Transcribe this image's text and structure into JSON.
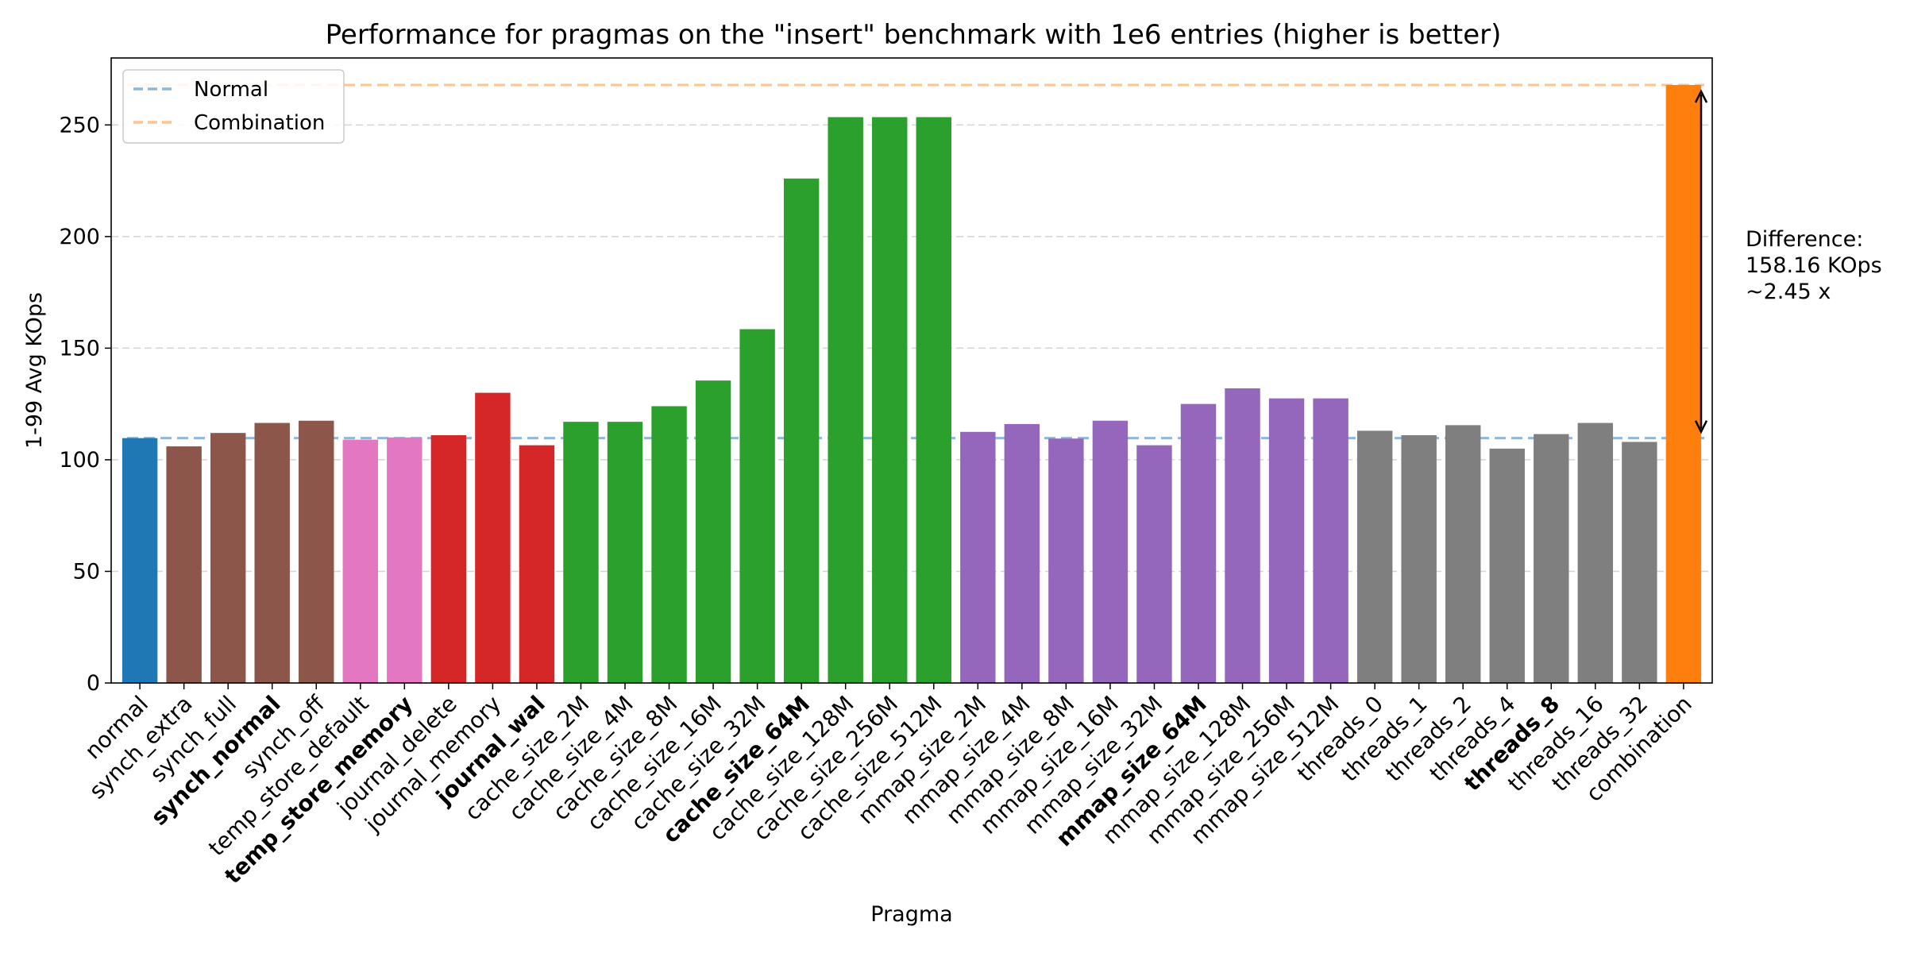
{
  "chart_data": {
    "type": "bar",
    "title": "Performance for pragmas on the \"insert\" benchmark with 1e6 entries (higher is better)",
    "xlabel": "Pragma",
    "ylabel": "1-99 Avg KOps",
    "ylim": [
      0,
      280
    ],
    "yticks": [
      0,
      50,
      100,
      150,
      200,
      250
    ],
    "grid": "horizontal dashed",
    "legend": {
      "placement": "top-left",
      "entries": [
        {
          "label": "Normal",
          "color": "#8eb8d9"
        },
        {
          "label": "Combination",
          "color": "#ffc48e"
        }
      ]
    },
    "reference_lines": [
      {
        "name": "Normal",
        "value": 109.7,
        "color": "#8eb8d9"
      },
      {
        "name": "Combination",
        "value": 267.9,
        "color": "#ffc48e"
      }
    ],
    "annotation": {
      "lines": [
        "Difference:",
        "158.16 KOps",
        "~2.45 x"
      ],
      "from": 109.7,
      "to": 267.9
    },
    "bars": [
      {
        "category": "normal",
        "value": 109.7,
        "color": "#1f77b4",
        "bold": false
      },
      {
        "category": "synch_extra",
        "value": 106,
        "color": "#8c564b",
        "bold": false
      },
      {
        "category": "synch_full",
        "value": 112,
        "color": "#8c564b",
        "bold": false
      },
      {
        "category": "synch_normal",
        "value": 116.5,
        "color": "#8c564b",
        "bold": true
      },
      {
        "category": "synch_off",
        "value": 117.5,
        "color": "#8c564b",
        "bold": false
      },
      {
        "category": "temp_store_default",
        "value": 109,
        "color": "#e377c2",
        "bold": false
      },
      {
        "category": "temp_store_memory",
        "value": 110,
        "color": "#e377c2",
        "bold": true
      },
      {
        "category": "journal_delete",
        "value": 111,
        "color": "#d62728",
        "bold": false
      },
      {
        "category": "journal_memory",
        "value": 130,
        "color": "#d62728",
        "bold": false
      },
      {
        "category": "journal_wal",
        "value": 106.5,
        "color": "#d62728",
        "bold": true
      },
      {
        "category": "cache_size_2M",
        "value": 117,
        "color": "#2ca02c",
        "bold": false
      },
      {
        "category": "cache_size_4M",
        "value": 117,
        "color": "#2ca02c",
        "bold": false
      },
      {
        "category": "cache_size_8M",
        "value": 124,
        "color": "#2ca02c",
        "bold": false
      },
      {
        "category": "cache_size_16M",
        "value": 135.5,
        "color": "#2ca02c",
        "bold": false
      },
      {
        "category": "cache_size_32M",
        "value": 158.5,
        "color": "#2ca02c",
        "bold": false
      },
      {
        "category": "cache_size_64M",
        "value": 226,
        "color": "#2ca02c",
        "bold": true
      },
      {
        "category": "cache_size_128M",
        "value": 253.5,
        "color": "#2ca02c",
        "bold": false
      },
      {
        "category": "cache_size_256M",
        "value": 253.5,
        "color": "#2ca02c",
        "bold": false
      },
      {
        "category": "cache_size_512M",
        "value": 253.5,
        "color": "#2ca02c",
        "bold": false
      },
      {
        "category": "mmap_size_2M",
        "value": 112.5,
        "color": "#9467bd",
        "bold": false
      },
      {
        "category": "mmap_size_4M",
        "value": 116,
        "color": "#9467bd",
        "bold": false
      },
      {
        "category": "mmap_size_8M",
        "value": 109.5,
        "color": "#9467bd",
        "bold": false
      },
      {
        "category": "mmap_size_16M",
        "value": 117.5,
        "color": "#9467bd",
        "bold": false
      },
      {
        "category": "mmap_size_32M",
        "value": 106.5,
        "color": "#9467bd",
        "bold": false
      },
      {
        "category": "mmap_size_64M",
        "value": 125,
        "color": "#9467bd",
        "bold": true
      },
      {
        "category": "mmap_size_128M",
        "value": 132,
        "color": "#9467bd",
        "bold": false
      },
      {
        "category": "mmap_size_256M",
        "value": 127.5,
        "color": "#9467bd",
        "bold": false
      },
      {
        "category": "mmap_size_512M",
        "value": 127.5,
        "color": "#9467bd",
        "bold": false
      },
      {
        "category": "threads_0",
        "value": 113,
        "color": "#7f7f7f",
        "bold": false
      },
      {
        "category": "threads_1",
        "value": 111,
        "color": "#7f7f7f",
        "bold": false
      },
      {
        "category": "threads_2",
        "value": 115.5,
        "color": "#7f7f7f",
        "bold": false
      },
      {
        "category": "threads_4",
        "value": 105,
        "color": "#7f7f7f",
        "bold": false
      },
      {
        "category": "threads_8",
        "value": 111.5,
        "color": "#7f7f7f",
        "bold": true
      },
      {
        "category": "threads_16",
        "value": 116.5,
        "color": "#7f7f7f",
        "bold": false
      },
      {
        "category": "threads_32",
        "value": 108,
        "color": "#7f7f7f",
        "bold": false
      },
      {
        "category": "combination",
        "value": 267.9,
        "color": "#ff7f0e",
        "bold": false
      }
    ]
  }
}
